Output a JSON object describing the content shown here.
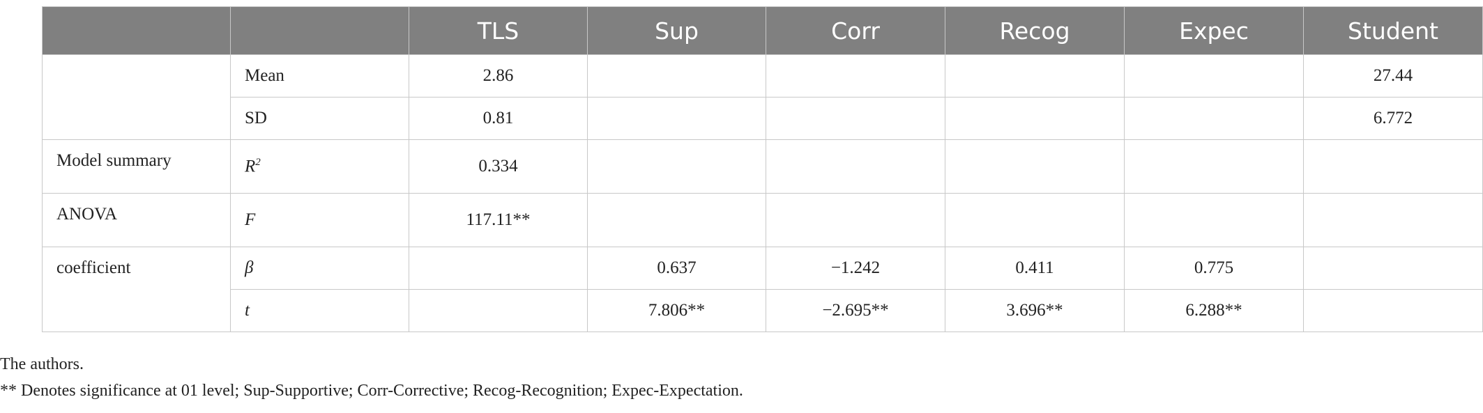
{
  "table": {
    "columns": [
      "TLS",
      "Sup",
      "Corr",
      "Recog",
      "Expec",
      "Student"
    ],
    "groups": [
      {
        "label": null,
        "rows": [
          {
            "stat": "Mean",
            "values": [
              "2.86",
              null,
              null,
              null,
              null,
              "27.44"
            ]
          },
          {
            "stat": "SD",
            "values": [
              "0.81",
              null,
              null,
              null,
              null,
              "6.772"
            ]
          }
        ]
      },
      {
        "label": "Model summary",
        "rows": [
          {
            "stat": "R",
            "stat_sup": "2",
            "values": [
              "0.334",
              null,
              null,
              null,
              null,
              null
            ]
          }
        ]
      },
      {
        "label": "ANOVA",
        "rows": [
          {
            "stat": "F",
            "values": [
              "117.11**",
              null,
              null,
              null,
              null,
              null
            ]
          }
        ]
      },
      {
        "label": "coefficient",
        "rows": [
          {
            "stat": "β",
            "values": [
              null,
              "0.637",
              "−1.242",
              "0.411",
              "0.775",
              null
            ]
          },
          {
            "stat": "t",
            "values": [
              null,
              "7.806**",
              "−2.695**",
              "3.696**",
              "6.288**",
              null
            ]
          }
        ]
      }
    ]
  },
  "footnotes": [
    "The authors.",
    "** Denotes significance at 01 level; Sup-Supportive; Corr-Corrective; Recog-Recognition; Expec-Expectation."
  ]
}
